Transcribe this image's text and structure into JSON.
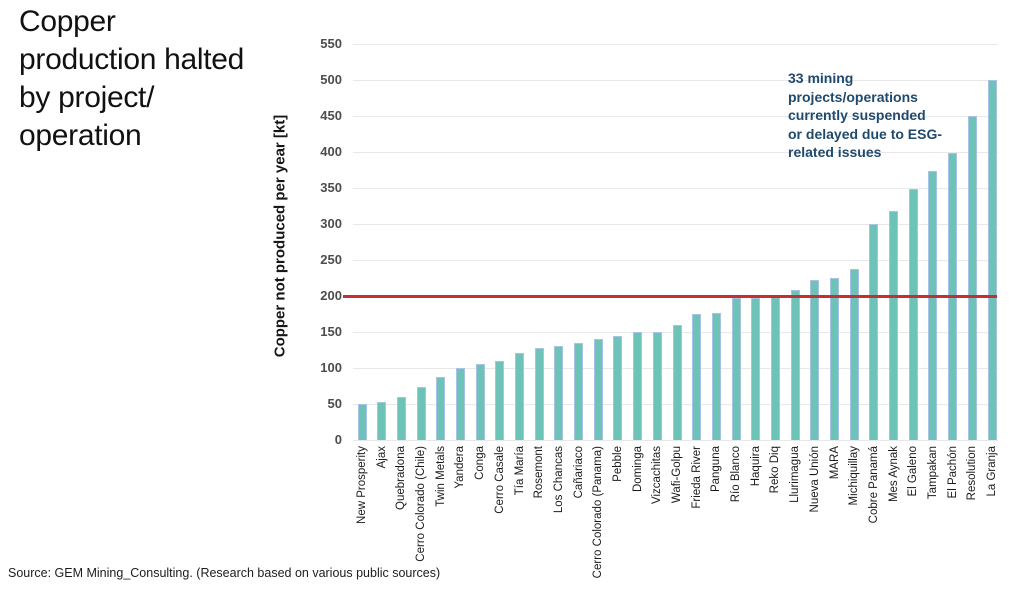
{
  "title": "Copper\nproduction halted\nby project/\noperation",
  "annotation": "33 mining\nprojects/operations\ncurrently suspended\nor delayed due to ESG-\nrelated issues",
  "source": "Source: GEM Mining_Consulting. (Research based on various public sources)",
  "colors": {
    "bar": "#6ec3b8",
    "bar_edge": "#a9c3e6",
    "reference_line": "#c62f2f",
    "annotation_text": "#1f4a6d",
    "gridline": "#e8e8eb"
  },
  "chart_data": {
    "type": "bar",
    "title": "",
    "xlabel": "",
    "ylabel": "Copper not produced per year [kt]",
    "ylim": [
      0,
      550
    ],
    "yticks": [
      0,
      50,
      100,
      150,
      200,
      250,
      300,
      350,
      400,
      450,
      500,
      550
    ],
    "grid": true,
    "legend": false,
    "reference_line_value": 200,
    "categories": [
      "New Prosperity",
      "Ajax",
      "Quebradona",
      "Cerro Colorado (Chile)",
      "Twin Metals",
      "Yandera",
      "Conga",
      "Cerro Casale",
      "Tía María",
      "Rosemont",
      "Los Chancas",
      "Cañariaco",
      "Cerro Colorado (Panama)",
      "Pebble",
      "Dominga",
      "Vizcachitas",
      "Wafi-Golpu",
      "Frieda River",
      "Panguna",
      "Río Blanco",
      "Haquira",
      "Reko Diq",
      "Llurimagua",
      "Nueva Unión",
      "MARA",
      "Michiquillay",
      "Cobre Panamá",
      "Mes Aynak",
      "El Galeno",
      "Tampakan",
      "El Pachón",
      "Resolution",
      "La Granja"
    ],
    "values": [
      50,
      53,
      60,
      74,
      88,
      100,
      105,
      110,
      121,
      128,
      131,
      135,
      140,
      145,
      150,
      150,
      160,
      175,
      176,
      197,
      197,
      198,
      208,
      222,
      225,
      238,
      300,
      318,
      348,
      374,
      398,
      450,
      500
    ]
  }
}
